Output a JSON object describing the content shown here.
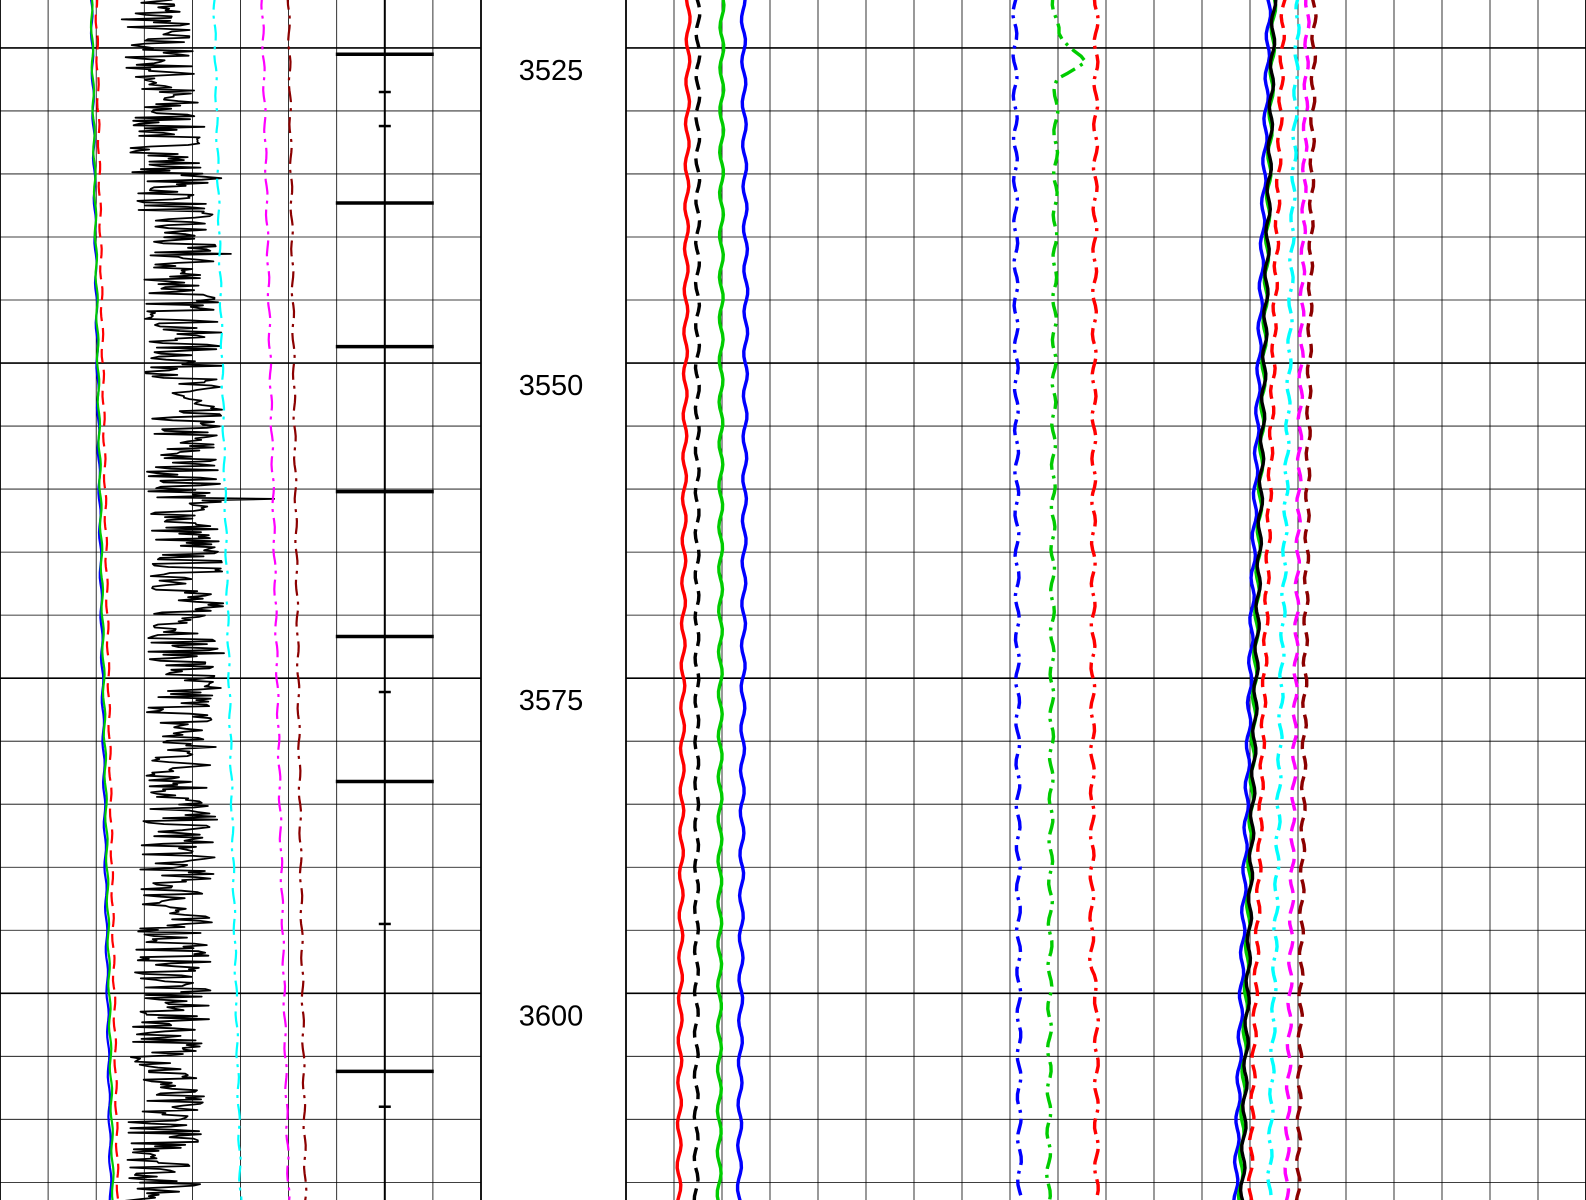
{
  "chart_data": {
    "type": "line",
    "title": "",
    "depth_axis": {
      "ylim": [
        3521.2,
        3616.4
      ],
      "ticks": [
        3525,
        3550,
        3575,
        3600
      ],
      "tick_labels": [
        "3525",
        "3550",
        "3575",
        "3600"
      ],
      "minor_step": 5
    },
    "tracks": [
      {
        "name": "track-1",
        "xlim": [
          0,
          1
        ],
        "grid_divisions": 10,
        "series": [
          {
            "color": "#000000",
            "style": "solid",
            "kind": "noisy",
            "base": [
              [
                3521,
                0.32
              ],
              [
                3545,
                0.38
              ],
              [
                3570,
                0.39
              ],
              [
                3616,
                0.34
              ]
            ],
            "amp": 0.08,
            "spikes": [
              [
                3535.3,
                0.46
              ],
              [
                3541.3,
                0.48
              ],
              [
                3560.8,
                0.57
              ],
              [
                3596.2,
                0.43
              ]
            ]
          },
          {
            "color": "#0000ff",
            "style": "solid",
            "kind": "smooth",
            "base": [
              [
                3521,
                0.19
              ],
              [
                3616,
                0.23
              ]
            ]
          },
          {
            "color": "#00cc00",
            "style": "solid",
            "kind": "smooth",
            "base": [
              [
                3521,
                0.19
              ],
              [
                3616,
                0.235
              ]
            ]
          },
          {
            "color": "#ff0000",
            "style": "dashed",
            "kind": "smooth",
            "base": [
              [
                3521,
                0.2
              ],
              [
                3616,
                0.245
              ]
            ]
          },
          {
            "color": "#00ffff",
            "style": "dashdot",
            "kind": "smooth",
            "base": [
              [
                3521,
                0.445
              ],
              [
                3616,
                0.5
              ]
            ]
          },
          {
            "color": "#ff00ff",
            "style": "dashdot",
            "kind": "smooth",
            "base": [
              [
                3521,
                0.545
              ],
              [
                3616,
                0.6
              ]
            ]
          },
          {
            "color": "#8b0000",
            "style": "dashdot",
            "kind": "smooth",
            "base": [
              [
                3521,
                0.6
              ],
              [
                3616,
                0.635
              ]
            ]
          }
        ],
        "markers": {
          "center": 0.8,
          "major_depths": [
            3525.5,
            3537.3,
            3548.7,
            3560.2,
            3571.7,
            3583.2,
            3606.2
          ],
          "minor_depths": [
            3528.5,
            3531.2,
            3576.1,
            3594.5,
            3609.0
          ]
        }
      },
      {
        "name": "track-2",
        "xlim": [
          0,
          1
        ],
        "grid_divisions": 20,
        "series": [
          {
            "color": "#ff0000",
            "style": "solid",
            "kind": "smooth",
            "base": [
              [
                3521,
                0.065
              ],
              [
                3616,
                0.055
              ]
            ]
          },
          {
            "color": "#000000",
            "style": "dashed",
            "kind": "smooth",
            "base": [
              [
                3521,
                0.075
              ],
              [
                3616,
                0.073
              ]
            ]
          },
          {
            "color": "#00cc00",
            "style": "solid",
            "kind": "smooth",
            "base": [
              [
                3521,
                0.1
              ],
              [
                3616,
                0.097
              ]
            ]
          },
          {
            "color": "#0000ff",
            "style": "solid",
            "kind": "smooth",
            "base": [
              [
                3521,
                0.122
              ],
              [
                3545,
                0.125
              ],
              [
                3616,
                0.118
              ]
            ]
          },
          {
            "color": "#0000ff",
            "style": "dashdot",
            "kind": "smooth",
            "base": [
              [
                3521,
                0.405
              ],
              [
                3616,
                0.41
              ]
            ]
          },
          {
            "color": "#00cc00",
            "style": "dashdot",
            "kind": "smooth",
            "base": [
              [
                3521,
                0.445
              ],
              [
                3524,
                0.45
              ],
              [
                3526,
                0.48
              ],
              [
                3527.5,
                0.448
              ],
              [
                3616,
                0.44
              ]
            ]
          },
          {
            "color": "#ff0000",
            "style": "dashdot",
            "kind": "smooth",
            "base": [
              [
                3521,
                0.49
              ],
              [
                3545,
                0.488
              ],
              [
                3598,
                0.485
              ],
              [
                3600,
                0.49
              ],
              [
                3616,
                0.49
              ]
            ]
          },
          {
            "color": "#0000ff",
            "style": "solid",
            "kind": "smooth",
            "base": [
              [
                3521,
                0.67
              ],
              [
                3616,
                0.635
              ]
            ]
          },
          {
            "color": "#00cc00",
            "style": "solid",
            "kind": "smooth",
            "base": [
              [
                3521,
                0.675
              ],
              [
                3616,
                0.64
              ]
            ]
          },
          {
            "color": "#000000",
            "style": "solid",
            "kind": "smooth",
            "base": [
              [
                3521,
                0.675
              ],
              [
                3616,
                0.642
              ]
            ]
          },
          {
            "color": "#ff0000",
            "style": "dashed",
            "kind": "smooth",
            "base": [
              [
                3521,
                0.685
              ],
              [
                3616,
                0.65
              ]
            ]
          },
          {
            "color": "#00ffff",
            "style": "dashdot",
            "kind": "smooth",
            "base": [
              [
                3521,
                0.7
              ],
              [
                3616,
                0.67
              ]
            ]
          },
          {
            "color": "#ff00ff",
            "style": "dashed",
            "kind": "smooth",
            "base": [
              [
                3521,
                0.71
              ],
              [
                3616,
                0.688
              ]
            ]
          },
          {
            "color": "#8b0000",
            "style": "dashed",
            "kind": "smooth",
            "base": [
              [
                3521,
                0.717
              ],
              [
                3616,
                0.7
              ]
            ]
          }
        ]
      }
    ]
  }
}
